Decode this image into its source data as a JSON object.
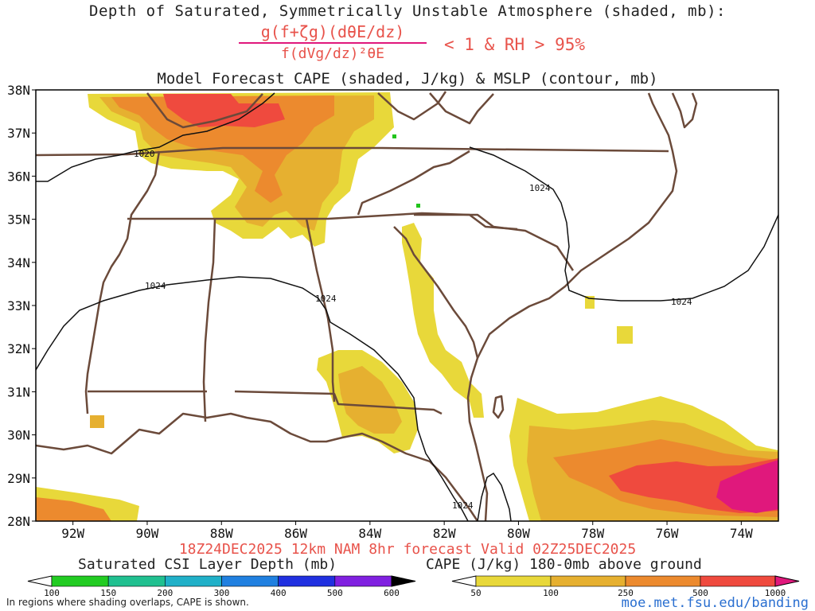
{
  "titles": {
    "line1": "Depth of Saturated, Symmetrically Unstable Atmosphere (shaded, mb):",
    "line2_numerator": "g(f+ζg)(dθE/dz)",
    "line2_denominator": "f(dVg/dz)²θE",
    "line2_condition": "< 1 & RH > 95%",
    "line3": "Model Forecast CAPE (shaded, J/kg) & MSLP (contour, mb)",
    "valid": "18Z24DEC2025 12km NAM 8hr forecast Valid 02Z25DEC2025"
  },
  "map": {
    "region": "Southeastern United States",
    "lat_labels": [
      "38N",
      "37N",
      "36N",
      "35N",
      "34N",
      "33N",
      "32N",
      "31N",
      "30N",
      "29N",
      "28N"
    ],
    "lon_labels": [
      "92W",
      "90W",
      "88W",
      "86W",
      "84W",
      "82W",
      "80W",
      "78W",
      "76W",
      "74W"
    ],
    "lat_range": [
      28,
      38
    ],
    "lon_range": [
      -93,
      -73
    ],
    "mslp_contour_labels": [
      {
        "text": "1020"
      },
      {
        "text": "1024"
      },
      {
        "text": "1024"
      },
      {
        "text": "1024"
      },
      {
        "text": "1024"
      },
      {
        "text": "1024"
      }
    ],
    "colors": {
      "border": "#6b4a3a",
      "contour": "#111111",
      "cape_50": "#e8d83a",
      "cape_100": "#e6b030",
      "cape_250": "#ec8a2e",
      "cape_500": "#ef4a3e",
      "cape_1000": "#e0187c",
      "csi_green": "#22c41c"
    }
  },
  "colorbars": {
    "csi": {
      "title": "Saturated CSI Layer Depth (mb)",
      "ticks": [
        "100",
        "150",
        "200",
        "300",
        "400",
        "500",
        "600"
      ],
      "colors": [
        "#ffffff",
        "#22cc22",
        "#20c090",
        "#20b0c8",
        "#2080e0",
        "#2030e0",
        "#8020e0",
        "#000000"
      ]
    },
    "cape": {
      "title": "CAPE (J/kg) 180-0mb above ground",
      "ticks": [
        "50",
        "100",
        "250",
        "500",
        "1000"
      ],
      "colors": [
        "#ffffff",
        "#e8d83a",
        "#e6b030",
        "#ec8a2e",
        "#ef4a3e",
        "#e0187c"
      ]
    }
  },
  "footer": {
    "note": "In regions where shading overlaps, CAPE is shown.",
    "website": "moe.met.fsu.edu/banding"
  }
}
